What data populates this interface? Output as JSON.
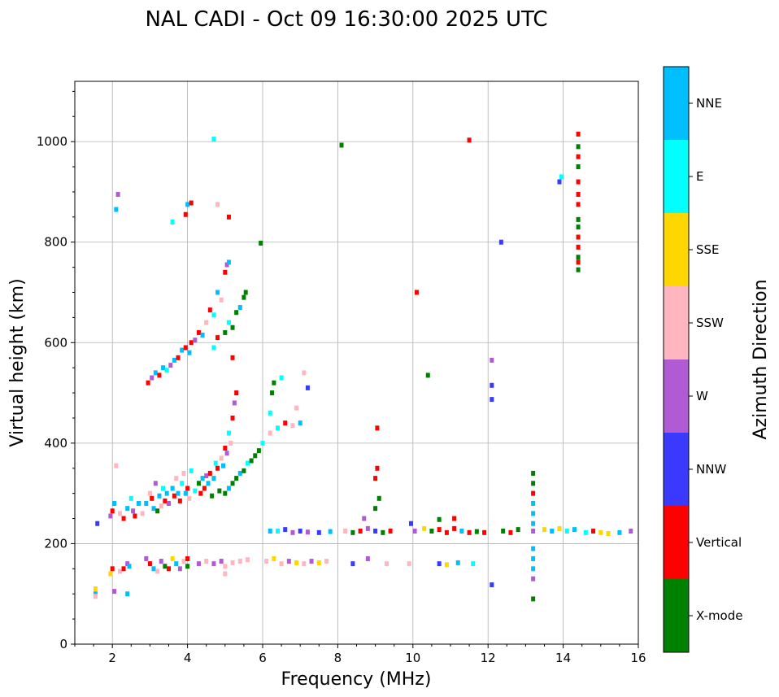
{
  "chart_data": {
    "type": "scatter",
    "title": "NAL CADI - Oct 09 16:30:00 2025 UTC",
    "xlabel": "Frequency (MHz)",
    "ylabel": "Virtual height (km)",
    "xlim": [
      1,
      16
    ],
    "ylim": [
      0,
      1120
    ],
    "xticks": [
      2,
      4,
      6,
      8,
      10,
      12,
      14,
      16
    ],
    "yticks": [
      0,
      200,
      400,
      600,
      800,
      1000
    ],
    "grid": true,
    "colorbar": {
      "label": "Azimuth Direction",
      "categories": [
        {
          "name": "X-mode",
          "color": "#008000"
        },
        {
          "name": "Vertical",
          "color": "#ff0000"
        },
        {
          "name": "NNW",
          "color": "#3a3aff"
        },
        {
          "name": "W",
          "color": "#b15ad6"
        },
        {
          "name": "SSW",
          "color": "#ffb6c1"
        },
        {
          "name": "SSE",
          "color": "#ffd700"
        },
        {
          "name": "E",
          "color": "#00ffff"
        },
        {
          "name": "NNE",
          "color": "#00bfff"
        }
      ]
    },
    "points": [
      [
        1.55,
        100,
        "NNE"
      ],
      [
        1.55,
        110,
        "SSE"
      ],
      [
        1.55,
        95,
        "SSW"
      ],
      [
        1.6,
        240,
        "NNW"
      ],
      [
        1.95,
        140,
        "SSE"
      ],
      [
        2.0,
        150,
        "Vertical"
      ],
      [
        2.05,
        105,
        "W"
      ],
      [
        1.95,
        255,
        "W"
      ],
      [
        2.0,
        265,
        "Vertical"
      ],
      [
        2.05,
        280,
        "NNE"
      ],
      [
        2.1,
        355,
        "SSW"
      ],
      [
        2.1,
        865,
        "NNE"
      ],
      [
        2.15,
        895,
        "W"
      ],
      [
        2.2,
        145,
        "SSW"
      ],
      [
        2.3,
        150,
        "Vertical"
      ],
      [
        2.4,
        160,
        "W"
      ],
      [
        2.45,
        155,
        "NNE"
      ],
      [
        2.4,
        100,
        "NNE"
      ],
      [
        2.2,
        260,
        "SSW"
      ],
      [
        2.3,
        250,
        "Vertical"
      ],
      [
        2.4,
        270,
        "NNE"
      ],
      [
        2.5,
        290,
        "E"
      ],
      [
        2.55,
        265,
        "W"
      ],
      [
        2.6,
        255,
        "Vertical"
      ],
      [
        2.7,
        280,
        "NNE"
      ],
      [
        2.8,
        260,
        "SSW"
      ],
      [
        2.9,
        170,
        "W"
      ],
      [
        3.0,
        160,
        "Vertical"
      ],
      [
        3.1,
        150,
        "NNE"
      ],
      [
        3.2,
        145,
        "SSW"
      ],
      [
        3.3,
        165,
        "W"
      ],
      [
        3.4,
        155,
        "X-mode"
      ],
      [
        3.5,
        150,
        "Vertical"
      ],
      [
        3.6,
        170,
        "SSE"
      ],
      [
        3.7,
        160,
        "NNE"
      ],
      [
        3.8,
        150,
        "W"
      ],
      [
        3.9,
        165,
        "SSW"
      ],
      [
        4.0,
        155,
        "X-mode"
      ],
      [
        4.0,
        170,
        "Vertical"
      ],
      [
        2.9,
        280,
        "NNE"
      ],
      [
        3.0,
        300,
        "SSW"
      ],
      [
        3.05,
        290,
        "Vertical"
      ],
      [
        3.1,
        270,
        "NNE"
      ],
      [
        3.15,
        320,
        "W"
      ],
      [
        3.2,
        265,
        "X-mode"
      ],
      [
        3.25,
        295,
        "NNE"
      ],
      [
        3.3,
        275,
        "SSW"
      ],
      [
        3.35,
        310,
        "E"
      ],
      [
        3.4,
        285,
        "Vertical"
      ],
      [
        3.45,
        300,
        "NNE"
      ],
      [
        3.5,
        280,
        "W"
      ],
      [
        3.6,
        310,
        "NNE"
      ],
      [
        3.65,
        295,
        "Vertical"
      ],
      [
        3.7,
        330,
        "SSW"
      ],
      [
        3.75,
        300,
        "NNE"
      ],
      [
        3.8,
        285,
        "Vertical"
      ],
      [
        3.85,
        320,
        "E"
      ],
      [
        3.9,
        340,
        "SSW"
      ],
      [
        3.95,
        300,
        "NNE"
      ],
      [
        4.0,
        310,
        "Vertical"
      ],
      [
        4.05,
        290,
        "SSW"
      ],
      [
        4.1,
        345,
        "E"
      ],
      [
        2.95,
        520,
        "Vertical"
      ],
      [
        3.05,
        530,
        "W"
      ],
      [
        3.15,
        540,
        "NNE"
      ],
      [
        3.25,
        535,
        "Vertical"
      ],
      [
        3.35,
        550,
        "NNE"
      ],
      [
        3.45,
        545,
        "E"
      ],
      [
        3.55,
        555,
        "W"
      ],
      [
        3.65,
        565,
        "NNE"
      ],
      [
        3.75,
        570,
        "Vertical"
      ],
      [
        3.85,
        585,
        "NNE"
      ],
      [
        3.95,
        590,
        "Vertical"
      ],
      [
        4.05,
        580,
        "NNE"
      ],
      [
        4.1,
        600,
        "Vertical"
      ],
      [
        3.6,
        840,
        "E"
      ],
      [
        3.95,
        855,
        "Vertical"
      ],
      [
        4.0,
        875,
        "NNE"
      ],
      [
        4.1,
        878,
        "Vertical"
      ],
      [
        4.3,
        160,
        "W"
      ],
      [
        4.5,
        165,
        "SSW"
      ],
      [
        4.7,
        160,
        "W"
      ],
      [
        4.9,
        165,
        "W"
      ],
      [
        5.0,
        155,
        "SSW"
      ],
      [
        5.2,
        162,
        "SSW"
      ],
      [
        5.4,
        165,
        "SSW"
      ],
      [
        5.6,
        168,
        "SSW"
      ],
      [
        5.0,
        140,
        "SSW"
      ],
      [
        4.2,
        305,
        "E"
      ],
      [
        4.3,
        320,
        "X-mode"
      ],
      [
        4.35,
        300,
        "Vertical"
      ],
      [
        4.4,
        330,
        "NNE"
      ],
      [
        4.45,
        310,
        "Vertical"
      ],
      [
        4.5,
        335,
        "W"
      ],
      [
        4.55,
        320,
        "NNE"
      ],
      [
        4.6,
        340,
        "Vertical"
      ],
      [
        4.65,
        295,
        "X-mode"
      ],
      [
        4.7,
        330,
        "NNE"
      ],
      [
        4.75,
        360,
        "E"
      ],
      [
        4.8,
        350,
        "Vertical"
      ],
      [
        4.85,
        305,
        "X-mode"
      ],
      [
        4.9,
        370,
        "SSW"
      ],
      [
        4.95,
        355,
        "NNE"
      ],
      [
        5.0,
        390,
        "Vertical"
      ],
      [
        5.05,
        380,
        "W"
      ],
      [
        5.1,
        420,
        "E"
      ],
      [
        5.15,
        400,
        "SSW"
      ],
      [
        5.2,
        450,
        "Vertical"
      ],
      [
        5.25,
        480,
        "W"
      ],
      [
        5.3,
        500,
        "Vertical"
      ],
      [
        5.0,
        300,
        "X-mode"
      ],
      [
        5.1,
        310,
        "NNE"
      ],
      [
        5.2,
        320,
        "X-mode"
      ],
      [
        5.3,
        330,
        "X-mode"
      ],
      [
        5.4,
        340,
        "NNE"
      ],
      [
        5.5,
        345,
        "X-mode"
      ],
      [
        5.6,
        360,
        "E"
      ],
      [
        5.7,
        365,
        "X-mode"
      ],
      [
        5.8,
        375,
        "X-mode"
      ],
      [
        5.9,
        385,
        "X-mode"
      ],
      [
        6.0,
        400,
        "E"
      ],
      [
        4.2,
        605,
        "W"
      ],
      [
        4.3,
        620,
        "Vertical"
      ],
      [
        4.4,
        615,
        "NNE"
      ],
      [
        4.5,
        640,
        "SSW"
      ],
      [
        4.6,
        665,
        "Vertical"
      ],
      [
        4.7,
        655,
        "E"
      ],
      [
        4.8,
        700,
        "NNE"
      ],
      [
        4.9,
        685,
        "SSW"
      ],
      [
        5.0,
        740,
        "Vertical"
      ],
      [
        5.05,
        755,
        "W"
      ],
      [
        5.1,
        760,
        "NNE"
      ],
      [
        4.7,
        1005,
        "E"
      ],
      [
        4.8,
        875,
        "SSW"
      ],
      [
        5.1,
        850,
        "Vertical"
      ],
      [
        4.7,
        590,
        "E"
      ],
      [
        4.8,
        610,
        "Vertical"
      ],
      [
        5.0,
        620,
        "X-mode"
      ],
      [
        5.1,
        640,
        "E"
      ],
      [
        5.2,
        630,
        "X-mode"
      ],
      [
        5.3,
        660,
        "X-mode"
      ],
      [
        5.4,
        670,
        "NNE"
      ],
      [
        5.5,
        690,
        "X-mode"
      ],
      [
        5.55,
        700,
        "X-mode"
      ],
      [
        5.2,
        570,
        "Vertical"
      ],
      [
        5.95,
        798,
        "X-mode"
      ],
      [
        6.1,
        165,
        "SSW"
      ],
      [
        6.3,
        170,
        "SSE"
      ],
      [
        6.5,
        160,
        "SSW"
      ],
      [
        6.7,
        165,
        "W"
      ],
      [
        6.9,
        162,
        "SSE"
      ],
      [
        7.1,
        160,
        "SSW"
      ],
      [
        7.3,
        165,
        "W"
      ],
      [
        7.5,
        162,
        "SSE"
      ],
      [
        7.7,
        165,
        "SSW"
      ],
      [
        6.2,
        225,
        "NNE"
      ],
      [
        6.4,
        225,
        "E"
      ],
      [
        6.6,
        228,
        "NNW"
      ],
      [
        6.8,
        222,
        "W"
      ],
      [
        7.0,
        225,
        "NNW"
      ],
      [
        7.2,
        223,
        "W"
      ],
      [
        7.5,
        222,
        "NNW"
      ],
      [
        7.8,
        224,
        "NNE"
      ],
      [
        6.2,
        420,
        "SSW"
      ],
      [
        6.4,
        430,
        "E"
      ],
      [
        6.6,
        440,
        "Vertical"
      ],
      [
        6.8,
        435,
        "SSW"
      ],
      [
        7.0,
        440,
        "NNE"
      ],
      [
        6.2,
        460,
        "E"
      ],
      [
        6.25,
        500,
        "X-mode"
      ],
      [
        6.3,
        520,
        "X-mode"
      ],
      [
        6.5,
        530,
        "E"
      ],
      [
        6.9,
        470,
        "SSW"
      ],
      [
        7.1,
        540,
        "SSW"
      ],
      [
        7.2,
        510,
        "NNW"
      ],
      [
        8.1,
        993,
        "X-mode"
      ],
      [
        8.2,
        225,
        "SSW"
      ],
      [
        8.4,
        222,
        "X-mode"
      ],
      [
        8.6,
        225,
        "Vertical"
      ],
      [
        8.8,
        230,
        "W"
      ],
      [
        9.0,
        225,
        "NNW"
      ],
      [
        9.2,
        222,
        "X-mode"
      ],
      [
        9.4,
        225,
        "Vertical"
      ],
      [
        8.4,
        160,
        "NNW"
      ],
      [
        8.8,
        170,
        "W"
      ],
      [
        9.3,
        160,
        "SSW"
      ],
      [
        8.7,
        250,
        "W"
      ],
      [
        9.0,
        270,
        "X-mode"
      ],
      [
        9.1,
        290,
        "X-mode"
      ],
      [
        9.0,
        330,
        "Vertical"
      ],
      [
        9.05,
        350,
        "Vertical"
      ],
      [
        9.05,
        430,
        "Vertical"
      ],
      [
        9.9,
        160,
        "SSW"
      ],
      [
        10.1,
        700,
        "Vertical"
      ],
      [
        10.4,
        535,
        "X-mode"
      ],
      [
        9.95,
        240,
        "NNW"
      ],
      [
        10.05,
        225,
        "W"
      ],
      [
        10.3,
        230,
        "SSE"
      ],
      [
        10.5,
        225,
        "X-mode"
      ],
      [
        10.7,
        228,
        "Vertical"
      ],
      [
        10.9,
        222,
        "Vertical"
      ],
      [
        11.1,
        230,
        "Vertical"
      ],
      [
        11.3,
        225,
        "NNE"
      ],
      [
        11.5,
        222,
        "Vertical"
      ],
      [
        11.7,
        224,
        "X-mode"
      ],
      [
        11.9,
        222,
        "Vertical"
      ],
      [
        10.7,
        160,
        "NNW"
      ],
      [
        10.9,
        158,
        "SSE"
      ],
      [
        11.2,
        162,
        "NNE"
      ],
      [
        11.6,
        160,
        "E"
      ],
      [
        11.5,
        1003,
        "Vertical"
      ],
      [
        11.1,
        250,
        "Vertical"
      ],
      [
        10.7,
        248,
        "X-mode"
      ],
      [
        12.1,
        565,
        "W"
      ],
      [
        12.1,
        515,
        "NNW"
      ],
      [
        12.1,
        487,
        "NNW"
      ],
      [
        12.1,
        118,
        "NNW"
      ],
      [
        12.35,
        800,
        "NNW"
      ],
      [
        12.4,
        225,
        "X-mode"
      ],
      [
        12.6,
        222,
        "Vertical"
      ],
      [
        12.8,
        228,
        "X-mode"
      ],
      [
        13.2,
        225,
        "W"
      ],
      [
        13.5,
        228,
        "SSE"
      ],
      [
        13.7,
        225,
        "NNE"
      ],
      [
        13.9,
        230,
        "SSE"
      ],
      [
        14.1,
        225,
        "E"
      ],
      [
        14.3,
        228,
        "NNE"
      ],
      [
        14.6,
        222,
        "E"
      ],
      [
        14.8,
        225,
        "Vertical"
      ],
      [
        15.0,
        222,
        "SSE"
      ],
      [
        15.2,
        220,
        "SSE"
      ],
      [
        15.5,
        222,
        "NNE"
      ],
      [
        15.8,
        225,
        "W"
      ],
      [
        13.9,
        920,
        "NNW"
      ],
      [
        13.95,
        930,
        "E"
      ],
      [
        13.2,
        340,
        "X-mode"
      ],
      [
        13.2,
        320,
        "X-mode"
      ],
      [
        13.2,
        300,
        "Vertical"
      ],
      [
        13.2,
        280,
        "NNE"
      ],
      [
        13.2,
        260,
        "NNE"
      ],
      [
        13.2,
        240,
        "NNE"
      ],
      [
        13.2,
        190,
        "NNE"
      ],
      [
        13.2,
        170,
        "NNE"
      ],
      [
        13.2,
        150,
        "NNE"
      ],
      [
        13.2,
        130,
        "W"
      ],
      [
        13.2,
        90,
        "X-mode"
      ],
      [
        14.4,
        1015,
        "Vertical"
      ],
      [
        14.4,
        990,
        "X-mode"
      ],
      [
        14.4,
        970,
        "Vertical"
      ],
      [
        14.4,
        950,
        "X-mode"
      ],
      [
        14.4,
        920,
        "Vertical"
      ],
      [
        14.4,
        895,
        "Vertical"
      ],
      [
        14.4,
        875,
        "Vertical"
      ],
      [
        14.4,
        845,
        "X-mode"
      ],
      [
        14.4,
        830,
        "X-mode"
      ],
      [
        14.4,
        810,
        "Vertical"
      ],
      [
        14.4,
        790,
        "Vertical"
      ],
      [
        14.4,
        770,
        "X-mode"
      ],
      [
        14.4,
        760,
        "Vertical"
      ],
      [
        14.4,
        745,
        "X-mode"
      ]
    ]
  }
}
